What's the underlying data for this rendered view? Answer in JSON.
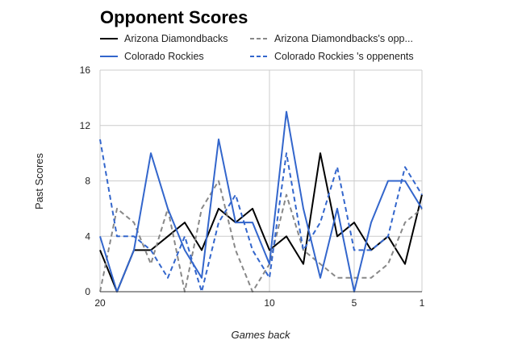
{
  "chart_data": {
    "type": "line",
    "title": "Opponent Scores",
    "xlabel": "Games back",
    "ylabel": "Past Scores",
    "x": [
      20,
      19,
      18,
      17,
      16,
      15,
      14,
      13,
      12,
      11,
      10,
      9,
      8,
      7,
      6,
      5,
      4,
      3,
      2,
      1
    ],
    "xlim": [
      20,
      1
    ],
    "x_reversed": true,
    "x_ticks": [
      "20",
      "10",
      "5",
      "1"
    ],
    "ylim": [
      0,
      16
    ],
    "y_ticks": [
      "0",
      "4",
      "8",
      "12",
      "16"
    ],
    "grid": true,
    "legend_position": "top",
    "series": [
      {
        "name": "Arizona Diamondbacks",
        "color": "#000000",
        "dash": "solid",
        "values": [
          3,
          0,
          3,
          3,
          4,
          5,
          3,
          6,
          5,
          6,
          3,
          4,
          2,
          10,
          4,
          5,
          3,
          4,
          2,
          7
        ]
      },
      {
        "name": "Arizona Diamondbacks's opp...",
        "color": "#888888",
        "dash": "dashed",
        "values": [
          0,
          6,
          5,
          2,
          6,
          0,
          6,
          8,
          3,
          0,
          2,
          7,
          3,
          2,
          1,
          1,
          1,
          2,
          5,
          6
        ]
      },
      {
        "name": "Colorado Rockies",
        "color": "#3366cc",
        "dash": "solid",
        "values": [
          4,
          0,
          3,
          10,
          6,
          3,
          1,
          11,
          5,
          5,
          2,
          13,
          6,
          1,
          6,
          0,
          5,
          8,
          8,
          6
        ]
      },
      {
        "name": "Colorado Rockies 's oppenents",
        "color": "#3366cc",
        "dash": "dashed",
        "values": [
          11,
          4,
          4,
          3,
          1,
          4,
          0,
          5,
          7,
          3,
          1,
          10,
          3,
          5,
          9,
          3,
          3,
          4,
          9,
          7
        ]
      }
    ]
  }
}
